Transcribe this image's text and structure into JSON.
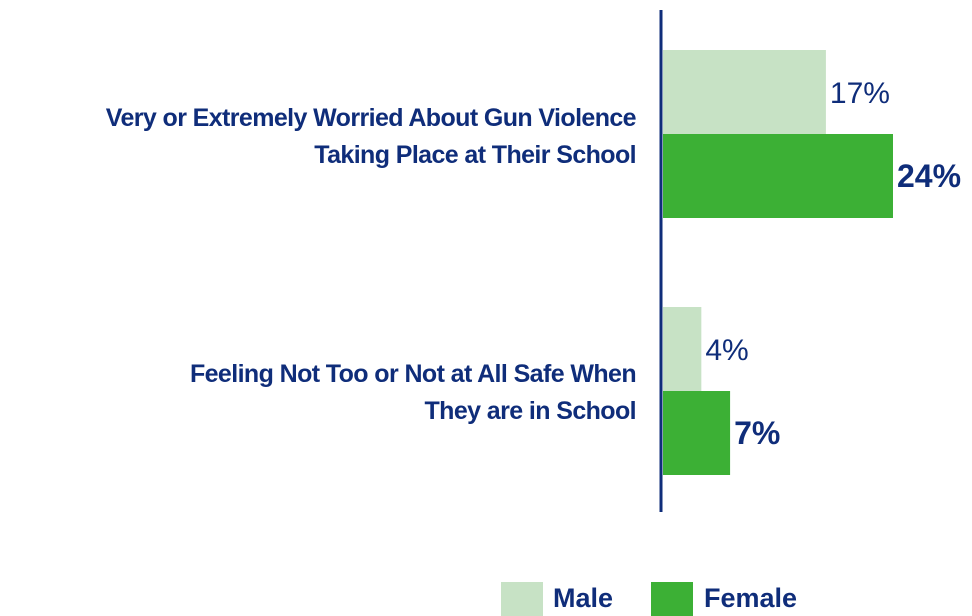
{
  "chart_data": {
    "type": "bar",
    "orientation": "horizontal",
    "categories": [
      [
        "Very or Extremely Worried About Gun Violence",
        "Taking Place at Their School"
      ],
      [
        "Feeling Not Too or Not at All Safe  When",
        "They are in School"
      ]
    ],
    "series": [
      {
        "name": "Male",
        "values": [
          17,
          4
        ],
        "value_labels": [
          "17%",
          "4%"
        ],
        "color": "#c7e2c5"
      },
      {
        "name": "Female",
        "values": [
          24,
          7
        ],
        "value_labels": [
          "24%",
          "7%"
        ],
        "color": "#3cb035"
      }
    ],
    "xlim": [
      0,
      24
    ],
    "grid": false,
    "legend": "bottom-right"
  },
  "colors": {
    "axis": "#0f2d7a",
    "text": "#0f2d7a"
  }
}
